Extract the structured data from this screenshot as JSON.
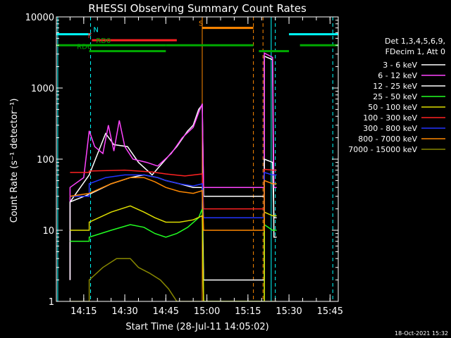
{
  "chart_data": {
    "type": "line",
    "title": "RHESSI Observing Summary Count Rates",
    "xlabel": "Start Time (28-Jul-11 14:05:02)",
    "ylabel": "Count Rate (s⁻¹ detector⁻¹)",
    "y_scale": "log",
    "ylim": [
      1,
      10000
    ],
    "xlim_minutes": [
      0,
      103
    ],
    "x_ticks": [
      {
        "t": 10,
        "label": "14:15"
      },
      {
        "t": 25,
        "label": "14:30"
      },
      {
        "t": 40,
        "label": "14:45"
      },
      {
        "t": 55,
        "label": "15:00"
      },
      {
        "t": 70,
        "label": "15:15"
      },
      {
        "t": 85,
        "label": "15:30"
      },
      {
        "t": 100,
        "label": "15:45"
      }
    ],
    "y_ticks": [
      {
        "v": 1,
        "label": "1"
      },
      {
        "v": 10,
        "label": "10"
      },
      {
        "v": 100,
        "label": "100"
      },
      {
        "v": 1000,
        "label": "1000"
      },
      {
        "v": 10000,
        "label": "10000"
      }
    ],
    "legend": {
      "header": [
        "Det 1,3,4,5,6,9,",
        "FDecim 1, Att 0"
      ],
      "placement": "right"
    },
    "series": [
      {
        "name": "3 - 6 keV",
        "color": "#ffffff",
        "points": [
          [
            5,
            2
          ],
          [
            5,
            25
          ],
          [
            12,
            60
          ],
          [
            18,
            230
          ],
          [
            21,
            160
          ],
          [
            26,
            150
          ],
          [
            30,
            90
          ],
          [
            35,
            60
          ],
          [
            40,
            100
          ],
          [
            44,
            150
          ],
          [
            48,
            250
          ],
          [
            50,
            300
          ],
          [
            52,
            500
          ],
          [
            53.3,
            580
          ],
          [
            53.8,
            30
          ],
          [
            76,
            30
          ],
          [
            76,
            2800
          ],
          [
            79,
            2500
          ],
          [
            79.5,
            8
          ],
          [
            80.5,
            8
          ]
        ]
      },
      {
        "name": "6 - 12 keV",
        "color": "#ff44ff",
        "points": [
          [
            5,
            2
          ],
          [
            5,
            40
          ],
          [
            10,
            55
          ],
          [
            12,
            250
          ],
          [
            14,
            150
          ],
          [
            17,
            120
          ],
          [
            19,
            300
          ],
          [
            21,
            130
          ],
          [
            23,
            350
          ],
          [
            25,
            150
          ],
          [
            28,
            100
          ],
          [
            33,
            90
          ],
          [
            37,
            80
          ],
          [
            42,
            120
          ],
          [
            46,
            200
          ],
          [
            50,
            280
          ],
          [
            52,
            450
          ],
          [
            53.3,
            600
          ],
          [
            53.8,
            40
          ],
          [
            76,
            40
          ],
          [
            76,
            3100
          ],
          [
            79,
            2700
          ],
          [
            79.5,
            40
          ],
          [
            80.5,
            40
          ]
        ]
      },
      {
        "name": "12 - 25 keV",
        "color": "#ffffff",
        "points": [
          [
            5,
            2
          ],
          [
            5,
            25
          ],
          [
            12,
            32
          ],
          [
            20,
            45
          ],
          [
            27,
            55
          ],
          [
            32,
            60
          ],
          [
            37,
            55
          ],
          [
            40,
            50
          ],
          [
            45,
            45
          ],
          [
            50,
            40
          ],
          [
            53.3,
            40
          ],
          [
            53.8,
            2
          ],
          [
            76,
            2
          ],
          [
            76,
            100
          ],
          [
            79,
            90
          ],
          [
            79.5,
            15
          ],
          [
            80.5,
            15
          ]
        ]
      },
      {
        "name": "25 - 50 keV",
        "color": "#22ff22",
        "points": [
          [
            5,
            7
          ],
          [
            12,
            7
          ],
          [
            12,
            8
          ],
          [
            20,
            10
          ],
          [
            27,
            12
          ],
          [
            32,
            11
          ],
          [
            36,
            9
          ],
          [
            40,
            8
          ],
          [
            44,
            9
          ],
          [
            48,
            11
          ],
          [
            52,
            15
          ],
          [
            53.3,
            20
          ],
          [
            53.8,
            1
          ],
          [
            76,
            1
          ],
          [
            76,
            12
          ],
          [
            79,
            10
          ],
          [
            79.5,
            10
          ],
          [
            80.5,
            10
          ]
        ]
      },
      {
        "name": "50 - 100 keV",
        "color": "#dddd00",
        "points": [
          [
            5,
            10
          ],
          [
            12,
            10
          ],
          [
            12,
            13
          ],
          [
            20,
            18
          ],
          [
            27,
            22
          ],
          [
            32,
            18
          ],
          [
            36,
            15
          ],
          [
            40,
            13
          ],
          [
            45,
            13
          ],
          [
            50,
            14
          ],
          [
            53.3,
            16
          ],
          [
            53.8,
            1
          ],
          [
            76,
            1
          ],
          [
            76,
            18
          ],
          [
            79,
            16
          ],
          [
            79.5,
            16
          ],
          [
            80.5,
            16
          ]
        ]
      },
      {
        "name": "100 - 300 keV",
        "color": "#ff2222",
        "points": [
          [
            5,
            65
          ],
          [
            12,
            65
          ],
          [
            12,
            68
          ],
          [
            25,
            70
          ],
          [
            35,
            66
          ],
          [
            40,
            62
          ],
          [
            47,
            58
          ],
          [
            53.3,
            62
          ],
          [
            53.8,
            20
          ],
          [
            76,
            20
          ],
          [
            76,
            72
          ],
          [
            79,
            70
          ],
          [
            79.5,
            70
          ],
          [
            80.5,
            70
          ]
        ]
      },
      {
        "name": "300 - 800 keV",
        "color": "#2233ff",
        "points": [
          [
            5,
            30
          ],
          [
            12,
            30
          ],
          [
            12,
            45
          ],
          [
            18,
            55
          ],
          [
            25,
            60
          ],
          [
            32,
            60
          ],
          [
            37,
            55
          ],
          [
            40,
            50
          ],
          [
            45,
            45
          ],
          [
            50,
            42
          ],
          [
            53.3,
            45
          ],
          [
            53.8,
            15
          ],
          [
            76,
            15
          ],
          [
            76,
            65
          ],
          [
            79,
            60
          ],
          [
            79.5,
            60
          ],
          [
            80.5,
            60
          ]
        ]
      },
      {
        "name": "800 - 7000 keV",
        "color": "#ff8800",
        "points": [
          [
            5,
            30
          ],
          [
            12,
            33
          ],
          [
            20,
            45
          ],
          [
            27,
            55
          ],
          [
            32,
            55
          ],
          [
            36,
            48
          ],
          [
            40,
            40
          ],
          [
            45,
            35
          ],
          [
            50,
            33
          ],
          [
            53.3,
            36
          ],
          [
            53.8,
            10
          ],
          [
            76,
            10
          ],
          [
            76,
            50
          ],
          [
            79,
            45
          ],
          [
            79.5,
            45
          ],
          [
            80.5,
            45
          ]
        ]
      },
      {
        "name": "7000 - 15000 keV",
        "color": "#888800",
        "points": [
          [
            5,
            1
          ],
          [
            12,
            1
          ],
          [
            12,
            2
          ],
          [
            17,
            3
          ],
          [
            22,
            4
          ],
          [
            27,
            4
          ],
          [
            30,
            3
          ],
          [
            34,
            2.5
          ],
          [
            38,
            2
          ],
          [
            41,
            1.5
          ],
          [
            44,
            1
          ],
          [
            53.8,
            1
          ],
          [
            76,
            1
          ],
          [
            80.5,
            1
          ]
        ]
      }
    ],
    "flag_bars": [
      {
        "label": "N",
        "color": "#00ffff",
        "segments": [
          [
            0,
            12.5
          ],
          [
            85,
            103
          ]
        ],
        "level": 5700,
        "label_t": 13.5
      },
      {
        "label": "S",
        "color": "#ff8800",
        "segments": [
          [
            53.3,
            72
          ]
        ],
        "level": 7000,
        "label_t": 52
      },
      {
        "label": "F",
        "color": "#ff2222",
        "segments": [
          [
            13,
            44
          ]
        ],
        "level": 4700,
        "label_t": 11.5
      },
      {
        "label": "RD0",
        "color": "#00aa00",
        "segments": [
          [
            0,
            40
          ],
          [
            40,
            72
          ],
          [
            89,
            103
          ]
        ],
        "level": 4000,
        "label_t": 14.5
      },
      {
        "label": "RD6",
        "color": "#00aa00",
        "segments": [
          [
            12,
            40
          ],
          [
            74,
            85
          ]
        ],
        "level": 3300,
        "label_t": 7.5
      }
    ],
    "vlines": [
      {
        "t": 0.5,
        "color": "#00ffff",
        "style": "solid"
      },
      {
        "t": 12.5,
        "color": "#00ffff",
        "style": "dashed"
      },
      {
        "t": 53.3,
        "color": "#ff8800",
        "style": "solid"
      },
      {
        "t": 72,
        "color": "#ff8800",
        "style": "dashed"
      },
      {
        "t": 75.5,
        "color": "#ff8800",
        "style": "dashed"
      },
      {
        "t": 78.5,
        "color": "#00ffff",
        "style": "solid"
      },
      {
        "t": 80,
        "color": "#00ffff",
        "style": "dashed"
      },
      {
        "t": 101,
        "color": "#00ffff",
        "style": "dashed"
      }
    ],
    "footer_date": "18-Oct-2021 15:32"
  }
}
